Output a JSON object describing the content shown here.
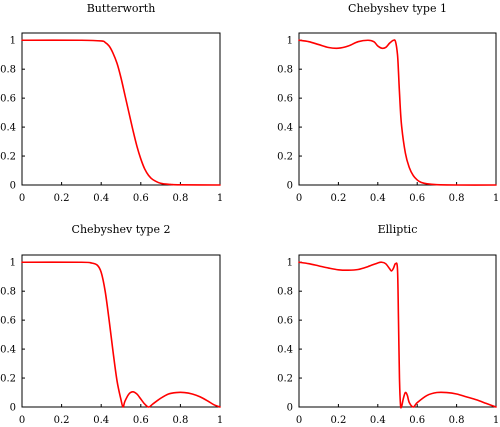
{
  "chart_data": [
    {
      "type": "line",
      "title": "Butterworth",
      "xlim": [
        0,
        1
      ],
      "ylim": [
        0,
        1.05
      ],
      "xticks": [
        "0",
        "0.2",
        "0.4",
        "0.6",
        "0.8",
        "1"
      ],
      "yticks": [
        "0",
        "0.2",
        "0.4",
        "0.6",
        "0.8",
        "1"
      ],
      "grid": false,
      "series": [
        {
          "color": "#ff0000",
          "x": [
            0,
            0.3,
            0.4,
            0.42,
            0.44,
            0.46,
            0.48,
            0.5,
            0.52,
            0.54,
            0.56,
            0.58,
            0.6,
            0.62,
            0.64,
            0.66,
            0.7,
            0.75,
            0.8,
            1
          ],
          "y": [
            1,
            1,
            0.995,
            0.985,
            0.96,
            0.91,
            0.84,
            0.74,
            0.62,
            0.5,
            0.38,
            0.27,
            0.18,
            0.11,
            0.065,
            0.038,
            0.012,
            0.004,
            0.001,
            0
          ]
        }
      ]
    },
    {
      "type": "line",
      "title": "Chebyshev type 1",
      "xlim": [
        0,
        1
      ],
      "ylim": [
        0,
        1.05
      ],
      "xticks": [
        "0",
        "0.2",
        "0.4",
        "0.6",
        "0.8",
        "1"
      ],
      "yticks": [
        "0",
        "0.2",
        "0.4",
        "0.6",
        "0.8",
        "1"
      ],
      "grid": false,
      "series": [
        {
          "color": "#ff0000",
          "x": [
            0,
            0.05,
            0.1,
            0.15,
            0.2,
            0.25,
            0.3,
            0.35,
            0.38,
            0.4,
            0.42,
            0.44,
            0.46,
            0.48,
            0.49,
            0.5,
            0.505,
            0.51,
            0.52,
            0.54,
            0.56,
            0.58,
            0.6,
            0.62,
            0.65,
            0.7,
            0.8,
            1
          ],
          "y": [
            1,
            0.99,
            0.97,
            0.95,
            0.945,
            0.96,
            0.99,
            1.0,
            0.99,
            0.96,
            0.945,
            0.95,
            0.98,
            1.0,
            0.99,
            0.9,
            0.78,
            0.64,
            0.42,
            0.22,
            0.12,
            0.065,
            0.035,
            0.018,
            0.008,
            0.002,
            0,
            0
          ]
        }
      ]
    },
    {
      "type": "line",
      "title": "Chebyshev type 2",
      "xlim": [
        0,
        1
      ],
      "ylim": [
        0,
        1.05
      ],
      "xticks": [
        "0",
        "0.2",
        "0.4",
        "0.6",
        "0.8",
        "1"
      ],
      "yticks": [
        "0",
        "0.2",
        "0.4",
        "0.6",
        "0.8",
        "1"
      ],
      "grid": false,
      "series": [
        {
          "color": "#ff0000",
          "x": [
            0,
            0.3,
            0.35,
            0.38,
            0.4,
            0.42,
            0.44,
            0.46,
            0.48,
            0.5,
            0.51,
            0.52,
            0.54,
            0.56,
            0.58,
            0.6,
            0.62,
            0.64,
            0.66,
            0.7,
            0.74,
            0.78,
            0.82,
            0.86,
            0.9,
            0.94,
            0.97,
            1
          ],
          "y": [
            1,
            1,
            0.995,
            0.98,
            0.93,
            0.8,
            0.6,
            0.38,
            0.18,
            0.05,
            0,
            0.04,
            0.09,
            0.105,
            0.09,
            0.055,
            0.02,
            0,
            0.02,
            0.06,
            0.09,
            0.1,
            0.1,
            0.09,
            0.07,
            0.04,
            0.015,
            0
          ]
        }
      ]
    },
    {
      "type": "line",
      "title": "Elliptic",
      "xlim": [
        0,
        1
      ],
      "ylim": [
        0,
        1.05
      ],
      "xticks": [
        "0",
        "0.2",
        "0.4",
        "0.6",
        "0.8",
        "1"
      ],
      "yticks": [
        "0",
        "0.2",
        "0.4",
        "0.6",
        "0.8",
        "1"
      ],
      "grid": false,
      "series": [
        {
          "color": "#ff0000",
          "x": [
            0,
            0.05,
            0.1,
            0.15,
            0.2,
            0.25,
            0.3,
            0.35,
            0.4,
            0.42,
            0.44,
            0.46,
            0.47,
            0.48,
            0.49,
            0.5,
            0.505,
            0.51,
            0.515,
            0.52,
            0.53,
            0.54,
            0.55,
            0.56,
            0.58,
            0.6,
            0.65,
            0.7,
            0.75,
            0.8,
            0.85,
            0.9,
            0.95,
            1
          ],
          "y": [
            1,
            0.99,
            0.975,
            0.96,
            0.948,
            0.945,
            0.95,
            0.97,
            0.995,
            1.0,
            0.99,
            0.955,
            0.94,
            0.96,
            0.99,
            0.95,
            0.6,
            0.2,
            0.02,
            0,
            0.06,
            0.1,
            0.08,
            0.03,
            0,
            0.03,
            0.08,
            0.1,
            0.1,
            0.09,
            0.07,
            0.05,
            0.025,
            0
          ]
        }
      ]
    }
  ]
}
